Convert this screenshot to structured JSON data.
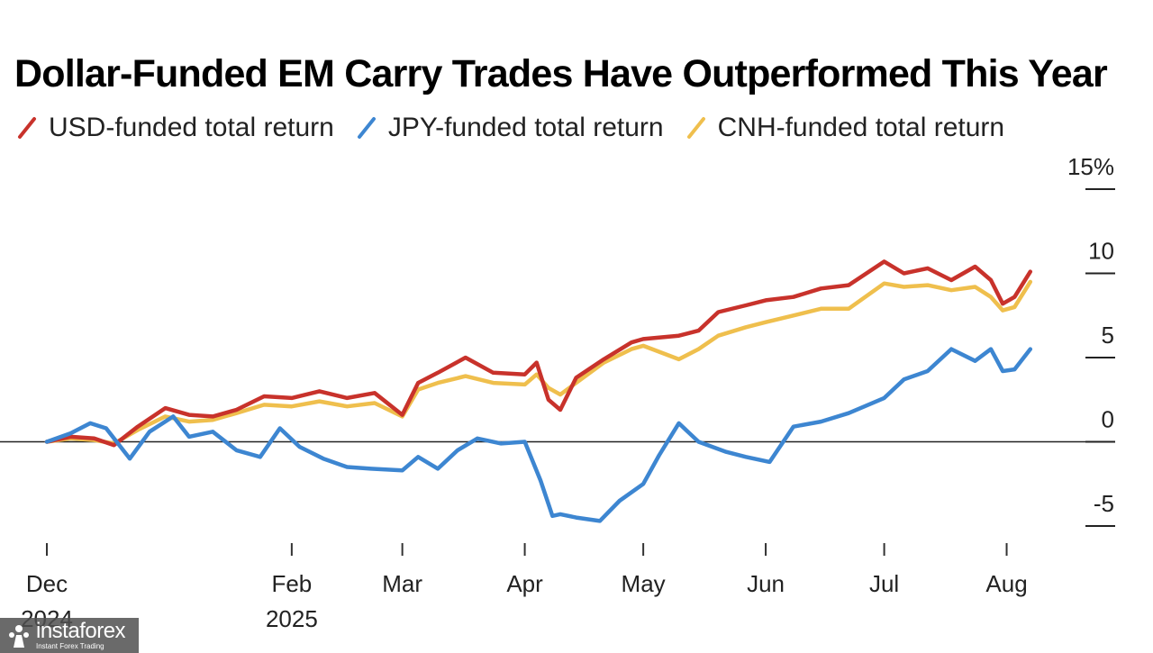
{
  "chart_data": {
    "type": "line",
    "title": "Dollar-Funded EM Carry Trades Have Outperformed This Year",
    "xlabel": "",
    "ylabel": "",
    "ylim": [
      -5,
      15
    ],
    "y_ticks": [
      {
        "value": 15,
        "label": "15%"
      },
      {
        "value": 10,
        "label": "10"
      },
      {
        "value": 5,
        "label": "5"
      },
      {
        "value": 0,
        "label": "0"
      },
      {
        "value": -5,
        "label": "-5"
      }
    ],
    "x_range": [
      "2024-12-01",
      "2025-08-10"
    ],
    "x_ticks": [
      {
        "date": "2024-12-01",
        "label": "Dec",
        "sublabel": "2024"
      },
      {
        "date": "2025-02-01",
        "label": "Feb",
        "sublabel": "2025"
      },
      {
        "date": "2025-03-01",
        "label": "Mar",
        "sublabel": ""
      },
      {
        "date": "2025-04-01",
        "label": "Apr",
        "sublabel": ""
      },
      {
        "date": "2025-05-01",
        "label": "May",
        "sublabel": ""
      },
      {
        "date": "2025-06-01",
        "label": "Jun",
        "sublabel": ""
      },
      {
        "date": "2025-07-01",
        "label": "Jul",
        "sublabel": ""
      },
      {
        "date": "2025-08-01",
        "label": "Aug",
        "sublabel": ""
      }
    ],
    "series": [
      {
        "name": "USD-funded total return",
        "color": "#c8322b",
        "dates": [
          "2024-12-01",
          "2024-12-07",
          "2024-12-13",
          "2024-12-18",
          "2024-12-24",
          "2024-12-31",
          "2025-01-06",
          "2025-01-12",
          "2025-01-18",
          "2025-01-25",
          "2025-02-01",
          "2025-02-08",
          "2025-02-15",
          "2025-02-22",
          "2025-03-01",
          "2025-03-05",
          "2025-03-10",
          "2025-03-17",
          "2025-03-24",
          "2025-04-01",
          "2025-04-04",
          "2025-04-07",
          "2025-04-10",
          "2025-04-14",
          "2025-04-21",
          "2025-04-28",
          "2025-05-01",
          "2025-05-10",
          "2025-05-15",
          "2025-05-20",
          "2025-05-27",
          "2025-06-01",
          "2025-06-08",
          "2025-06-15",
          "2025-06-22",
          "2025-07-01",
          "2025-07-06",
          "2025-07-12",
          "2025-07-18",
          "2025-07-24",
          "2025-07-28",
          "2025-07-31",
          "2025-08-03",
          "2025-08-07"
        ],
        "values": [
          0,
          0.3,
          0.2,
          -0.2,
          0.9,
          2.0,
          1.6,
          1.5,
          1.9,
          2.7,
          2.6,
          3.0,
          2.6,
          2.9,
          1.6,
          3.5,
          4.1,
          5.0,
          4.1,
          4.0,
          4.7,
          2.5,
          1.9,
          3.8,
          4.9,
          5.9,
          6.1,
          6.3,
          6.6,
          7.7,
          8.1,
          8.4,
          8.6,
          9.1,
          9.3,
          10.7,
          10.0,
          10.3,
          9.6,
          10.4,
          9.6,
          8.2,
          8.6,
          10.1
        ]
      },
      {
        "name": "JPY-funded total return",
        "color": "#3d86d1",
        "dates": [
          "2024-12-01",
          "2024-12-07",
          "2024-12-12",
          "2024-12-16",
          "2024-12-22",
          "2024-12-27",
          "2025-01-02",
          "2025-01-06",
          "2025-01-12",
          "2025-01-18",
          "2025-01-24",
          "2025-01-29",
          "2025-02-03",
          "2025-02-09",
          "2025-02-15",
          "2025-02-21",
          "2025-03-01",
          "2025-03-05",
          "2025-03-10",
          "2025-03-15",
          "2025-03-20",
          "2025-03-26",
          "2025-04-01",
          "2025-04-05",
          "2025-04-08",
          "2025-04-10",
          "2025-04-14",
          "2025-04-20",
          "2025-04-25",
          "2025-05-01",
          "2025-05-05",
          "2025-05-10",
          "2025-05-15",
          "2025-05-22",
          "2025-05-27",
          "2025-06-02",
          "2025-06-08",
          "2025-06-15",
          "2025-06-22",
          "2025-07-01",
          "2025-07-06",
          "2025-07-12",
          "2025-07-18",
          "2025-07-24",
          "2025-07-28",
          "2025-07-31",
          "2025-08-03",
          "2025-08-07"
        ],
        "values": [
          0,
          0.5,
          1.1,
          0.8,
          -1.0,
          0.6,
          1.5,
          0.3,
          0.6,
          -0.5,
          -0.9,
          0.8,
          -0.3,
          -1.0,
          -1.5,
          -1.6,
          -1.7,
          -0.9,
          -1.6,
          -0.5,
          0.2,
          -0.1,
          0,
          -2.3,
          -4.4,
          -4.3,
          -4.5,
          -4.7,
          -3.5,
          -2.5,
          -0.8,
          1.1,
          0,
          -0.6,
          -0.9,
          -1.2,
          0.9,
          1.2,
          1.7,
          2.6,
          3.7,
          4.2,
          5.5,
          4.8,
          5.5,
          4.2,
          4.3,
          5.5
        ]
      },
      {
        "name": "CNH-funded total return",
        "color": "#efbf4d",
        "dates": [
          "2024-12-01",
          "2024-12-07",
          "2024-12-13",
          "2024-12-18",
          "2024-12-24",
          "2024-12-31",
          "2025-01-06",
          "2025-01-12",
          "2025-01-18",
          "2025-01-25",
          "2025-02-01",
          "2025-02-08",
          "2025-02-15",
          "2025-02-22",
          "2025-03-01",
          "2025-03-05",
          "2025-03-10",
          "2025-03-17",
          "2025-03-24",
          "2025-04-01",
          "2025-04-04",
          "2025-04-07",
          "2025-04-10",
          "2025-04-14",
          "2025-04-21",
          "2025-04-28",
          "2025-05-01",
          "2025-05-10",
          "2025-05-15",
          "2025-05-20",
          "2025-05-27",
          "2025-06-01",
          "2025-06-08",
          "2025-06-15",
          "2025-06-22",
          "2025-07-01",
          "2025-07-06",
          "2025-07-12",
          "2025-07-18",
          "2025-07-24",
          "2025-07-28",
          "2025-07-31",
          "2025-08-03",
          "2025-08-07"
        ],
        "values": [
          0,
          0.2,
          0.1,
          -0.1,
          0.7,
          1.5,
          1.2,
          1.3,
          1.7,
          2.2,
          2.1,
          2.4,
          2.1,
          2.3,
          1.5,
          3.1,
          3.5,
          3.9,
          3.5,
          3.4,
          4.0,
          3.2,
          2.8,
          3.5,
          4.7,
          5.5,
          5.7,
          4.9,
          5.5,
          6.3,
          6.8,
          7.1,
          7.5,
          7.9,
          7.9,
          9.4,
          9.2,
          9.3,
          9.0,
          9.2,
          8.6,
          7.8,
          8.0,
          9.5
        ]
      }
    ]
  },
  "watermark": {
    "brand": "instaforex",
    "tagline": "Instant Forex Trading"
  }
}
